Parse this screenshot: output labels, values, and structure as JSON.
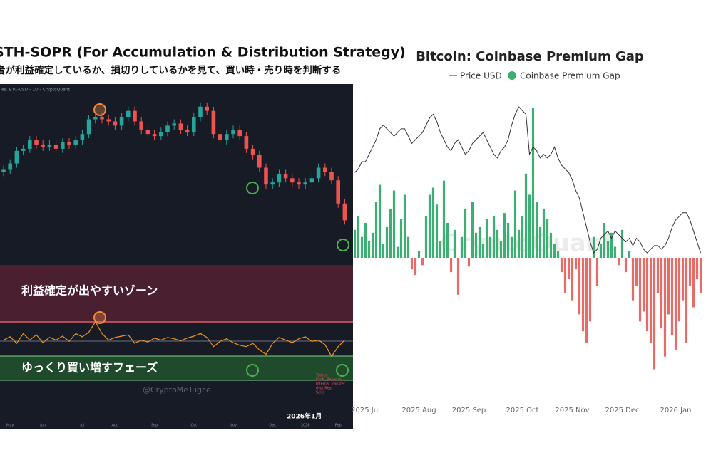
{
  "chart_data": [
    {
      "type": "candlestick",
      "title": "STH-SOPR (For Accumulation & Distribution Strategy)",
      "subtitle": "者が利益確定しているか、損切りしているかを見て、買い時・売り時を判断する",
      "source": "es. BTC-USD - 1D - CryptoQuant",
      "categories": [
        null,
        "May",
        null,
        null,
        null,
        null,
        "Jun",
        null,
        null,
        null,
        null,
        null,
        "Jul",
        null,
        null,
        null,
        null,
        "Aug",
        null,
        null,
        null,
        null,
        null,
        "Sep",
        null,
        null,
        null,
        null,
        null,
        "Oct",
        null,
        null,
        null,
        null,
        null,
        "Nov",
        null,
        null,
        null,
        null,
        null,
        "Dec",
        null,
        null,
        null,
        null,
        "2026",
        null,
        null,
        null,
        null,
        "Feb",
        null
      ],
      "open": [
        93,
        94,
        97,
        103,
        104,
        108,
        106,
        105,
        106,
        104,
        107,
        106,
        108,
        111,
        118,
        119,
        118,
        117,
        115,
        119,
        122,
        117,
        113,
        111,
        110,
        112,
        115,
        116,
        113,
        112,
        119,
        124,
        122,
        111,
        108,
        111,
        113,
        110,
        104,
        101,
        95,
        87,
        88,
        92,
        90,
        88,
        87,
        88,
        90,
        95,
        93,
        89,
        78
      ],
      "high": [
        96,
        99,
        105,
        106,
        110,
        110,
        108,
        108,
        108,
        109,
        109,
        110,
        113,
        120,
        121,
        121,
        120,
        119,
        121,
        124,
        124,
        119,
        115,
        113,
        114,
        117,
        118,
        118,
        115,
        121,
        126,
        126,
        124,
        113,
        113,
        115,
        115,
        112,
        106,
        103,
        97,
        90,
        94,
        94,
        92,
        90,
        90,
        92,
        97,
        97,
        95,
        91,
        80
      ],
      "low": [
        91,
        92,
        95,
        101,
        102,
        104,
        103,
        103,
        102,
        102,
        104,
        104,
        106,
        109,
        116,
        116,
        115,
        113,
        113,
        117,
        115,
        111,
        109,
        108,
        108,
        110,
        113,
        111,
        110,
        110,
        117,
        120,
        109,
        106,
        106,
        109,
        108,
        102,
        99,
        93,
        85,
        85,
        86,
        88,
        86,
        85,
        85,
        86,
        88,
        91,
        87,
        76,
        68
      ],
      "close": [
        94,
        97,
        103,
        104,
        108,
        106,
        105,
        106,
        104,
        107,
        106,
        108,
        111,
        118,
        119,
        118,
        117,
        115,
        119,
        122,
        117,
        113,
        111,
        110,
        112,
        115,
        116,
        113,
        112,
        119,
        124,
        122,
        111,
        108,
        111,
        113,
        110,
        104,
        101,
        95,
        87,
        88,
        92,
        90,
        88,
        87,
        88,
        90,
        95,
        93,
        89,
        78,
        70
      ],
      "ylim": [
        60,
        130
      ],
      "up_color": "#26a69a",
      "down_color": "#ef5350",
      "sopr_values": [
        1,
        1.005,
        0.995,
        1.01,
        1,
        1.008,
        0.996,
        1.004,
        1,
        1.006,
        0.998,
        1.01,
        1.005,
        1.012,
        1.028,
        1.01,
        1,
        1.004,
        1.006,
        1.008,
        0.995,
        1,
        0.997,
        1.003,
        1,
        1.004,
        1.002,
        0.999,
        1.003,
        1.006,
        1.01,
        1.004,
        0.99,
        0.998,
        1.002,
        0.996,
        0.992,
        0.99,
        0.995,
        0.985,
        0.978,
        0.995,
        1.004,
        1,
        0.996,
        1.002,
        1.005,
        0.998,
        1,
        0.993,
        0.975,
        0.99,
        1
      ],
      "sopr_ylim": [
        0.97,
        1.03
      ],
      "sopr_color": "#f7931a",
      "zones": [
        "利益確定が出やすいゾーン",
        "ゆっくり買い増すフェーズ"
      ],
      "watermark": "@CryptoMeTugce",
      "date_label": "2026年1月",
      "annotation": [
        "Tether",
        "Exch. Reserve",
        "Internal Transfer",
        "(Not Real",
        "Sell)"
      ]
    },
    {
      "type": "bar_line",
      "title": "Bitcoin: Coinbase Premium Gap",
      "categories": [
        null,
        null,
        null,
        "2025 Jul",
        null,
        null,
        null,
        null,
        null,
        null,
        null,
        null,
        null,
        null,
        null,
        null,
        null,
        null,
        "2025 Aug",
        null,
        null,
        null,
        null,
        null,
        null,
        null,
        null,
        null,
        null,
        null,
        null,
        null,
        "2025 Sep",
        null,
        null,
        null,
        null,
        null,
        null,
        null,
        null,
        null,
        null,
        null,
        null,
        null,
        null,
        "2025 Oct",
        null,
        null,
        null,
        null,
        null,
        null,
        null,
        null,
        null,
        null,
        null,
        null,
        null,
        "2025 Nov",
        null,
        null,
        null,
        null,
        null,
        null,
        null,
        null,
        null,
        null,
        null,
        null,
        null,
        "2025 Dec",
        null,
        null,
        null,
        null,
        null,
        null,
        null,
        null,
        null,
        null,
        null,
        null,
        null,
        null,
        "2026 Jan",
        null,
        null,
        null,
        null,
        null,
        null,
        null
      ],
      "series": [
        {
          "name": "Price USD",
          "type": "line",
          "axis": "y2",
          "color": "#333333",
          "values": [
            108,
            109,
            111,
            111,
            113,
            115,
            117,
            120,
            121,
            120,
            119,
            118,
            119,
            120,
            120,
            118,
            116,
            117,
            118,
            119,
            121,
            123,
            124,
            122,
            119,
            117,
            115,
            114,
            116,
            117,
            115,
            113,
            114,
            116,
            117,
            118,
            119,
            117,
            115,
            113,
            112,
            114,
            115,
            117,
            121,
            124,
            126,
            125,
            124,
            113,
            115,
            114,
            112,
            113,
            112,
            113,
            115,
            112,
            110,
            109,
            108,
            106,
            103,
            101,
            97,
            93,
            89,
            86,
            87,
            90,
            91,
            92,
            90,
            92,
            91,
            90,
            89,
            90,
            88,
            90,
            89,
            87,
            86,
            87,
            88,
            88,
            87,
            88,
            90,
            93,
            95,
            96,
            97,
            97,
            95,
            92,
            89,
            86
          ]
        },
        {
          "name": "Coinbase Premium Gap",
          "type": "bar",
          "color": "#3dae74",
          "negative_color": "#e76b67",
          "values": [
            20,
            30,
            15,
            25,
            12,
            18,
            40,
            52,
            10,
            22,
            35,
            48,
            8,
            28,
            45,
            15,
            -8,
            -12,
            5,
            -5,
            30,
            45,
            50,
            38,
            12,
            55,
            25,
            -10,
            20,
            -26,
            15,
            35,
            -6,
            40,
            18,
            22,
            10,
            28,
            15,
            30,
            20,
            12,
            32,
            25,
            15,
            48,
            20,
            30,
            60,
            45,
            107,
            40,
            22,
            35,
            28,
            18,
            10,
            5,
            -10,
            -25,
            -15,
            -30,
            -8,
            -40,
            -52,
            -60,
            -45,
            15,
            -20,
            10,
            25,
            12,
            18,
            8,
            -5,
            20,
            -10,
            5,
            -30,
            -20,
            -45,
            -38,
            -52,
            -60,
            -79,
            -25,
            -50,
            -70,
            -40,
            -55,
            -65,
            -45,
            -30,
            -60,
            -20,
            -35,
            -15,
            -25
          ]
        }
      ],
      "ylim": [
        -100,
        110
      ],
      "y2lim": [
        46,
        127
      ],
      "watermark": "CryptoQuant"
    }
  ]
}
